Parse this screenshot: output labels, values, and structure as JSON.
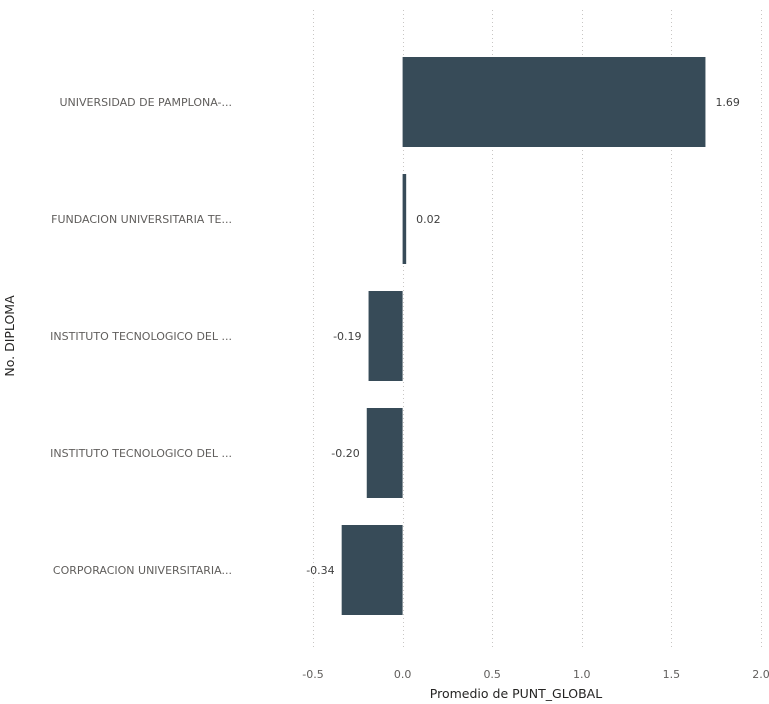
{
  "chart_data": {
    "type": "bar",
    "orientation": "horizontal",
    "categories": [
      "UNIVERSIDAD DE PAMPLONA-...",
      "FUNDACION UNIVERSITARIA TE...",
      "INSTITUTO TECNOLOGICO DEL ...",
      "INSTITUTO TECNOLOGICO DEL ...",
      "CORPORACION UNIVERSITARIA..."
    ],
    "values": [
      1.69,
      0.02,
      -0.19,
      -0.2,
      -0.34
    ],
    "data_labels": [
      "1.69",
      "0.02",
      "-0.19",
      "-0.20",
      "-0.34"
    ],
    "xlabel": "Promedio de PUNT_GLOBAL",
    "ylabel": "No. DIPLOMA",
    "xlim": [
      -0.5,
      2.0
    ],
    "xticks": [
      -0.5,
      0.0,
      0.5,
      1.0,
      1.5,
      2.0
    ],
    "xtick_labels": [
      "-0.5",
      "0.0",
      "0.5",
      "1.0",
      "1.5",
      "2.0"
    ],
    "grid": true,
    "bar_color": "#374b58"
  }
}
